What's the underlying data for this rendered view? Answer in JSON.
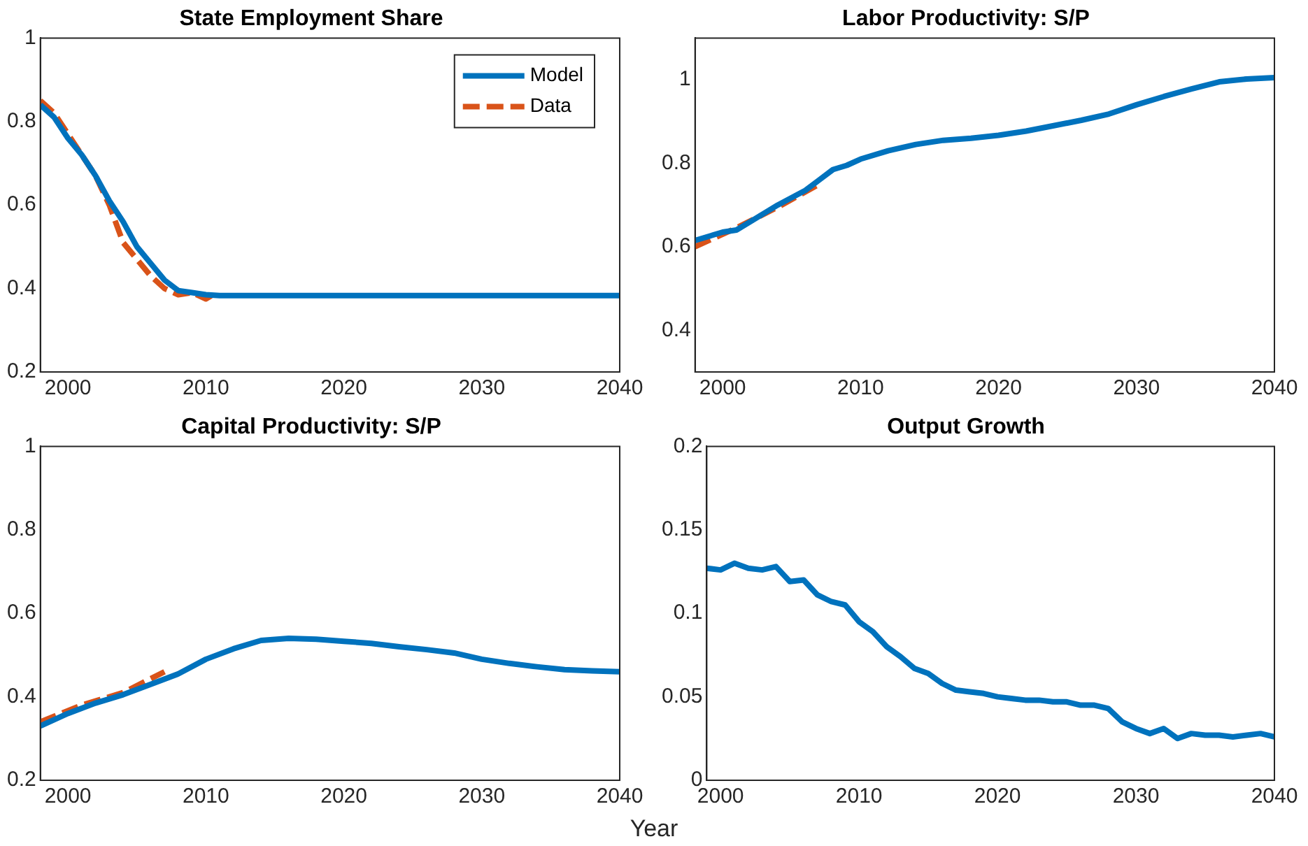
{
  "chart_data": [
    {
      "type": "line",
      "title": "State Employment Share",
      "xlim": [
        1998,
        2040
      ],
      "xticks": [
        2000,
        2010,
        2020,
        2030,
        2040
      ],
      "ylim": [
        0.2,
        1
      ],
      "yticks": [
        0.2,
        0.4,
        0.6,
        0.8,
        1
      ],
      "grid": false,
      "legend": "top right",
      "marker": "none",
      "series": [
        {
          "name": "Model",
          "color": "#0072bd",
          "line_style": "solid",
          "x": [
            1998,
            1999,
            2000,
            2001,
            2002,
            2003,
            2004,
            2005,
            2006,
            2007,
            2008,
            2009,
            2010,
            2011,
            2040
          ],
          "values": [
            0.84,
            0.81,
            0.76,
            0.72,
            0.67,
            0.61,
            0.56,
            0.5,
            0.46,
            0.42,
            0.395,
            0.39,
            0.385,
            0.383,
            0.383
          ]
        },
        {
          "name": "Data",
          "color": "#d95319",
          "line_style": "dashed",
          "x": [
            1998,
            1999,
            2000,
            2001,
            2002,
            2003,
            2004,
            2005,
            2006,
            2007,
            2008,
            2009,
            2010,
            2010.5
          ],
          "values": [
            0.85,
            0.82,
            0.77,
            0.72,
            0.67,
            0.6,
            0.51,
            0.47,
            0.43,
            0.4,
            0.385,
            0.39,
            0.375,
            0.385
          ]
        }
      ]
    },
    {
      "type": "line",
      "title": "Labor Productivity: S/P",
      "xlim": [
        1998,
        2040
      ],
      "xticks": [
        2000,
        2010,
        2020,
        2030,
        2040
      ],
      "ylim": [
        0.3,
        1.1
      ],
      "yticks": [
        0.4,
        0.6,
        0.8,
        1
      ],
      "grid": false,
      "legend": false,
      "marker": "none",
      "series": [
        {
          "color": "#0072bd",
          "line_style": "solid",
          "x": [
            1998,
            2000,
            2001,
            2002,
            2004,
            2006,
            2007,
            2008,
            2009,
            2010,
            2012,
            2014,
            2016,
            2018,
            2020,
            2022,
            2024,
            2026,
            2028,
            2030,
            2032,
            2034,
            2036,
            2038,
            2040
          ],
          "values": [
            0.615,
            0.635,
            0.64,
            0.66,
            0.7,
            0.735,
            0.76,
            0.785,
            0.795,
            0.81,
            0.83,
            0.845,
            0.855,
            0.86,
            0.867,
            0.877,
            0.89,
            0.903,
            0.918,
            0.94,
            0.96,
            0.978,
            0.995,
            1.002,
            1.005
          ]
        },
        {
          "color": "#d95319",
          "line_style": "dashed",
          "x": [
            1998,
            2001,
            2004,
            2007
          ],
          "values": [
            0.6,
            0.645,
            0.695,
            0.75
          ]
        }
      ]
    },
    {
      "type": "line",
      "title": "Capital Productivity: S/P",
      "xlabel": "Year",
      "xlim": [
        1998,
        2040
      ],
      "xticks": [
        2000,
        2010,
        2020,
        2030,
        2040
      ],
      "ylim": [
        0.2,
        1
      ],
      "yticks": [
        0.2,
        0.4,
        0.6,
        0.8,
        1
      ],
      "grid": false,
      "legend": false,
      "marker": "none",
      "series": [
        {
          "color": "#0072bd",
          "line_style": "solid",
          "x": [
            1998,
            2000,
            2002,
            2004,
            2006,
            2008,
            2010,
            2012,
            2014,
            2016,
            2018,
            2020,
            2022,
            2024,
            2026,
            2028,
            2030,
            2032,
            2034,
            2036,
            2038,
            2040
          ],
          "values": [
            0.33,
            0.36,
            0.385,
            0.405,
            0.43,
            0.455,
            0.49,
            0.515,
            0.535,
            0.54,
            0.538,
            0.533,
            0.528,
            0.52,
            0.513,
            0.505,
            0.49,
            0.48,
            0.472,
            0.465,
            0.462,
            0.46
          ]
        },
        {
          "color": "#d95319",
          "line_style": "dashed",
          "x": [
            1998,
            2001,
            2004,
            2007
          ],
          "values": [
            0.34,
            0.38,
            0.41,
            0.46
          ]
        }
      ]
    },
    {
      "type": "line",
      "title": "Output Growth",
      "xlim": [
        1999,
        2040
      ],
      "xticks": [
        2000,
        2010,
        2020,
        2030,
        2040
      ],
      "ylim": [
        0,
        0.2
      ],
      "yticks": [
        0,
        0.05,
        0.1,
        0.15,
        0.2
      ],
      "grid": false,
      "legend": false,
      "marker": "none",
      "series": [
        {
          "color": "#0072bd",
          "line_style": "solid",
          "x": [
            1999,
            2000,
            2001,
            2002,
            2003,
            2004,
            2005,
            2006,
            2007,
            2008,
            2009,
            2010,
            2011,
            2012,
            2013,
            2014,
            2015,
            2016,
            2017,
            2018,
            2019,
            2020,
            2021,
            2022,
            2023,
            2024,
            2025,
            2026,
            2027,
            2028,
            2029,
            2030,
            2031,
            2032,
            2033,
            2034,
            2035,
            2036,
            2037,
            2038,
            2039,
            2040
          ],
          "values": [
            0.127,
            0.126,
            0.13,
            0.127,
            0.126,
            0.128,
            0.119,
            0.12,
            0.111,
            0.107,
            0.105,
            0.095,
            0.089,
            0.08,
            0.074,
            0.067,
            0.064,
            0.058,
            0.054,
            0.053,
            0.052,
            0.05,
            0.049,
            0.048,
            0.048,
            0.047,
            0.047,
            0.045,
            0.045,
            0.043,
            0.035,
            0.031,
            0.028,
            0.031,
            0.025,
            0.028,
            0.027,
            0.027,
            0.026,
            0.027,
            0.028,
            0.026
          ]
        }
      ]
    }
  ]
}
